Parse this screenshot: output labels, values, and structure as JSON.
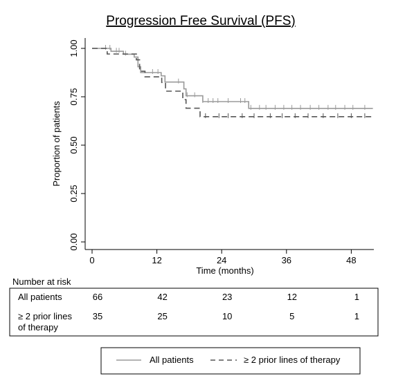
{
  "chart_data": {
    "type": "line",
    "title": "Progression Free Survival (PFS)",
    "xlabel": "Time (months)",
    "ylabel": "Proportion of patients",
    "xlim": [
      0,
      51
    ],
    "ylim": [
      0,
      1.05
    ],
    "x_ticks": [
      0,
      12,
      24,
      36,
      48
    ],
    "y_ticks": [
      0.0,
      0.25,
      0.5,
      0.75,
      1.0
    ],
    "y_tick_labels": [
      "0.00",
      "0.25",
      "0.50",
      "0.75",
      "1.00"
    ],
    "grid": false,
    "legend_position": "bottom",
    "series": [
      {
        "name": "All patients",
        "style": "solid",
        "color": "#9a9a9a",
        "steps": [
          [
            0,
            1.0
          ],
          [
            3.5,
            0.985
          ],
          [
            5.8,
            0.97
          ],
          [
            7.8,
            0.955
          ],
          [
            8.5,
            0.905
          ],
          [
            9.0,
            0.875
          ],
          [
            12.8,
            0.858
          ],
          [
            13.5,
            0.826
          ],
          [
            17.0,
            0.791
          ],
          [
            17.4,
            0.755
          ],
          [
            20.5,
            0.725
          ],
          [
            29.0,
            0.69
          ],
          [
            52.0,
            0.69
          ]
        ],
        "censor_times": [
          2.5,
          3.3,
          4.5,
          5.0,
          6.2,
          11.2,
          12.2,
          16.0,
          17.6,
          19.0,
          20.5,
          21.5,
          22.4,
          23.3,
          25.2,
          27.5,
          28.3,
          29.4,
          31.0,
          32.2,
          33.9,
          35.5,
          37.0,
          38.6,
          40.4,
          42.0,
          43.7,
          45.1,
          46.8,
          48.3,
          50.5
        ]
      },
      {
        "name": "≥ 2 prior lines of therapy",
        "style": "dashed",
        "color": "#555555",
        "steps": [
          [
            0,
            1.0
          ],
          [
            2.8,
            0.971
          ],
          [
            8.2,
            0.941
          ],
          [
            8.8,
            0.882
          ],
          [
            9.8,
            0.853
          ],
          [
            12.9,
            0.824
          ],
          [
            13.6,
            0.779
          ],
          [
            16.8,
            0.735
          ],
          [
            17.4,
            0.691
          ],
          [
            20.0,
            0.647
          ],
          [
            52.0,
            0.647
          ]
        ],
        "censor_times": [
          21.0,
          23.5,
          25.2,
          27.8,
          30.0,
          33.0,
          35.2,
          37.6,
          40.0,
          42.8,
          45.5,
          48.0,
          50.5
        ]
      }
    ]
  },
  "risk_table": {
    "header": "Number at risk",
    "rows": [
      {
        "label": [
          "All patients"
        ],
        "values": [
          "66",
          "42",
          "23",
          "12",
          "1"
        ]
      },
      {
        "label": [
          "≥ 2 prior lines",
          "of therapy"
        ],
        "values": [
          "35",
          "25",
          "10",
          "5",
          "1"
        ]
      }
    ]
  }
}
